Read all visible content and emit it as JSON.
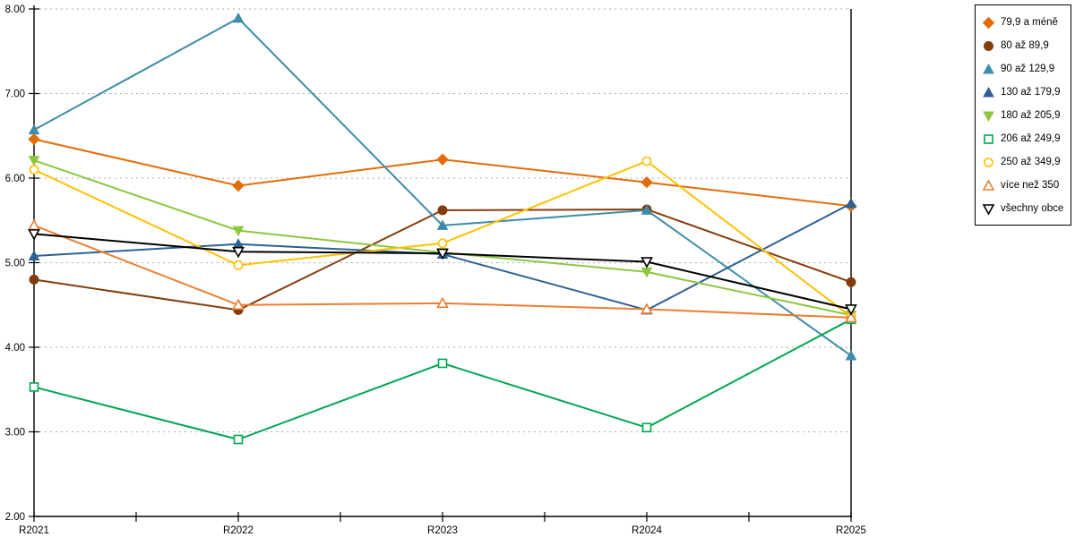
{
  "chart_data": {
    "type": "line",
    "title": "",
    "xlabel": "",
    "ylabel": "",
    "categories": [
      "R2021",
      "R2022",
      "R2023",
      "R2024",
      "R2025"
    ],
    "series": [
      {
        "name": "79,9 a méně",
        "color": "#E36C09",
        "marker": "diamond-filled",
        "values": [
          6.46,
          5.91,
          6.22,
          5.95,
          5.67
        ]
      },
      {
        "name": "80 až 89,9",
        "color": "#843C0C",
        "marker": "circle-filled",
        "values": [
          4.8,
          4.44,
          5.62,
          5.63,
          4.77
        ]
      },
      {
        "name": "90 až 129,9",
        "color": "#3D8CA8",
        "marker": "triangle-up-filled",
        "values": [
          6.57,
          7.89,
          5.44,
          5.62,
          3.9
        ]
      },
      {
        "name": "130 až 179,9",
        "color": "#2E6095",
        "marker": "triangle-up-filled",
        "values": [
          5.08,
          5.22,
          5.1,
          4.44,
          5.7
        ]
      },
      {
        "name": "180 až 205,9",
        "color": "#8DC63F",
        "marker": "triangle-down-filled",
        "values": [
          6.21,
          5.38,
          5.12,
          4.89,
          4.38
        ]
      },
      {
        "name": "206 až 249,9",
        "color": "#00A651",
        "marker": "square-open",
        "values": [
          3.53,
          2.91,
          3.81,
          3.05,
          4.33
        ]
      },
      {
        "name": "250 až 349,9",
        "color": "#FFC000",
        "marker": "circle-open",
        "values": [
          6.1,
          4.97,
          5.23,
          6.2,
          4.36
        ]
      },
      {
        "name": "více než 350",
        "color": "#ED7D31",
        "marker": "triangle-up-open",
        "values": [
          5.44,
          4.5,
          4.52,
          4.45,
          4.35
        ]
      },
      {
        "name": "všechny obce",
        "color": "#000000",
        "marker": "triangle-down-open",
        "values": [
          5.34,
          5.13,
          5.11,
          5.01,
          4.45
        ]
      }
    ],
    "ylim": [
      2,
      8
    ],
    "y_tick_labels": [
      "8.00",
      "7.00",
      "6.00",
      "5.00",
      "4.00",
      "3.00",
      "2.00"
    ],
    "grid": "horizontal dotted gridlines at each integer value",
    "legend_position": "top-right",
    "gridline_color": "#AAAAAA",
    "axis_color": "#000000"
  }
}
